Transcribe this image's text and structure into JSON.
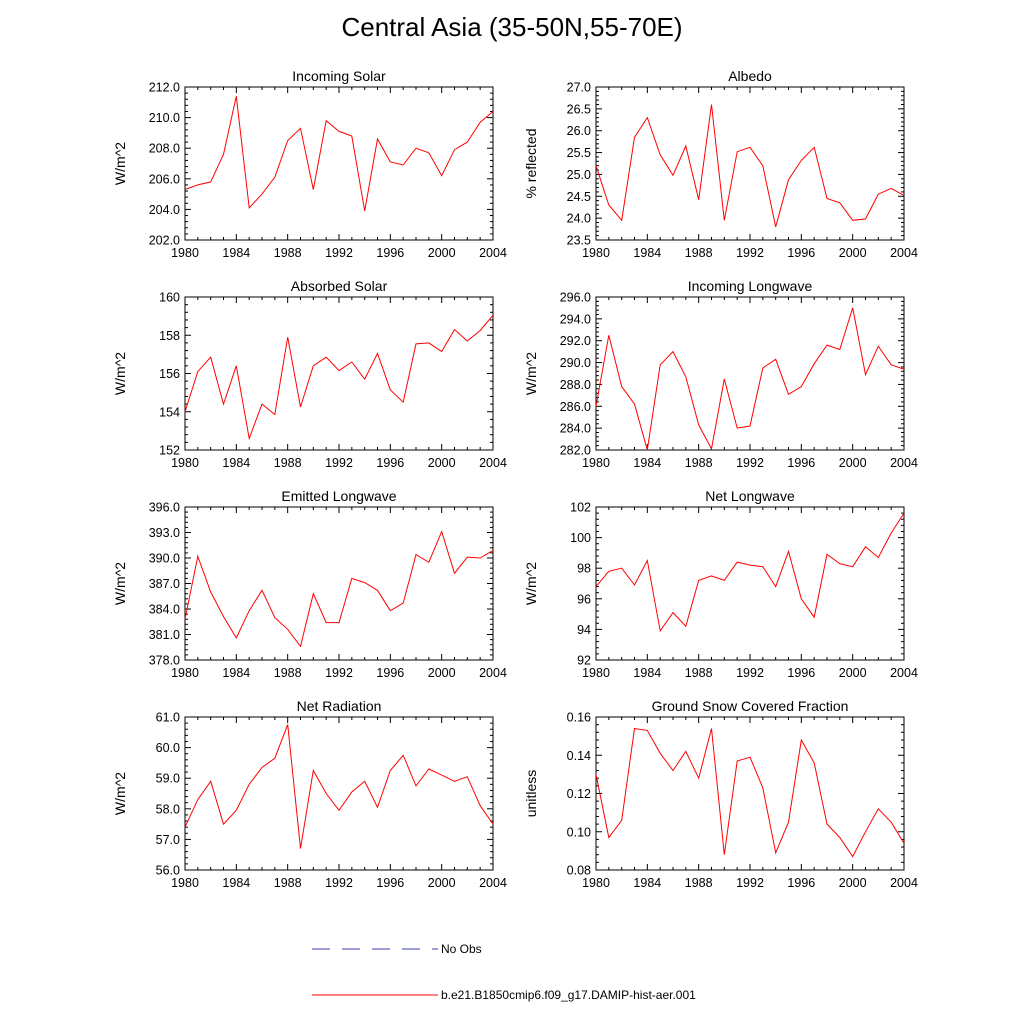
{
  "title": "Central Asia (35-50N,55-70E)",
  "colors": {
    "model_line": "#ff0000",
    "obs_line": "#3b3bb3",
    "axis": "#000000"
  },
  "legend": {
    "obs_label": "No Obs",
    "model_label": "b.e21.B1850cmip6.f09_g17.DAMIP-hist-aer.001"
  },
  "chart_data": [
    {
      "type": "line",
      "title": "Incoming Solar",
      "xlabel": "",
      "ylabel": "W/m^2",
      "xlim": [
        1980,
        2004
      ],
      "ylim": [
        202.0,
        212.0
      ],
      "xticks": [
        "1980",
        "1984",
        "1988",
        "1992",
        "1996",
        "2000",
        "2004"
      ],
      "yticks": [
        "202.0",
        "204.0",
        "206.0",
        "208.0",
        "210.0",
        "212.0"
      ],
      "series": [
        {
          "values": [
            205.3,
            205.6,
            205.8,
            207.6,
            211.4,
            204.1,
            205.0,
            206.1,
            208.5,
            209.3,
            205.3,
            209.8,
            209.1,
            208.8,
            203.9,
            208.6,
            207.1,
            206.9,
            208.0,
            207.7,
            206.2,
            207.9,
            208.4,
            209.7,
            210.4
          ]
        }
      ]
    },
    {
      "type": "line",
      "title": "Albedo",
      "xlabel": "",
      "ylabel": "% reflected",
      "xlim": [
        1980,
        2004
      ],
      "ylim": [
        23.5,
        27.0
      ],
      "xticks": [
        "1980",
        "1984",
        "1988",
        "1992",
        "1996",
        "2000",
        "2004"
      ],
      "yticks": [
        "23.5",
        "24.0",
        "24.5",
        "25.0",
        "25.5",
        "26.0",
        "26.5",
        "27.0"
      ],
      "series": [
        {
          "values": [
            25.2,
            24.3,
            23.95,
            25.85,
            26.3,
            25.45,
            24.98,
            25.65,
            24.42,
            26.6,
            23.95,
            25.52,
            25.62,
            25.2,
            23.8,
            24.88,
            25.32,
            25.62,
            24.45,
            24.35,
            23.95,
            23.98,
            24.55,
            24.68,
            24.52
          ]
        }
      ]
    },
    {
      "type": "line",
      "title": "Absorbed Solar",
      "xlabel": "",
      "ylabel": "W/m^2",
      "xlim": [
        1980,
        2004
      ],
      "ylim": [
        152,
        160
      ],
      "xticks": [
        "1980",
        "1984",
        "1988",
        "1992",
        "1996",
        "2000",
        "2004"
      ],
      "yticks": [
        "152",
        "154",
        "156",
        "158",
        "160"
      ],
      "series": [
        {
          "values": [
            154.0,
            156.1,
            156.85,
            154.4,
            156.4,
            152.6,
            154.4,
            153.85,
            157.9,
            154.25,
            156.4,
            156.85,
            156.15,
            156.6,
            155.7,
            157.05,
            155.15,
            154.5,
            157.55,
            157.6,
            157.15,
            158.3,
            157.7,
            158.25,
            159.05
          ]
        }
      ]
    },
    {
      "type": "line",
      "title": "Incoming Longwave",
      "xlabel": "",
      "ylabel": "W/m^2",
      "xlim": [
        1980,
        2004
      ],
      "ylim": [
        282.0,
        296.0
      ],
      "xticks": [
        "1980",
        "1984",
        "1988",
        "1992",
        "1996",
        "2000",
        "2004"
      ],
      "yticks": [
        "282.0",
        "284.0",
        "286.0",
        "288.0",
        "290.0",
        "292.0",
        "294.0",
        "296.0"
      ],
      "series": [
        {
          "values": [
            286.0,
            292.5,
            287.8,
            286.2,
            282.0,
            289.8,
            291.0,
            288.7,
            284.3,
            282.1,
            288.5,
            284.0,
            284.2,
            289.5,
            290.3,
            287.1,
            287.8,
            289.9,
            291.6,
            291.2,
            295.0,
            288.9,
            291.5,
            289.8,
            289.4
          ]
        }
      ]
    },
    {
      "type": "line",
      "title": "Emitted Longwave",
      "xlabel": "",
      "ylabel": "W/m^2",
      "xlim": [
        1980,
        2004
      ],
      "ylim": [
        378.0,
        396.0
      ],
      "xticks": [
        "1980",
        "1984",
        "1988",
        "1992",
        "1996",
        "2000",
        "2004"
      ],
      "yticks": [
        "378.0",
        "381.0",
        "384.0",
        "387.0",
        "390.0",
        "393.0",
        "396.0"
      ],
      "series": [
        {
          "values": [
            382.8,
            390.2,
            386.0,
            383.1,
            380.6,
            383.8,
            386.2,
            383.0,
            381.6,
            379.6,
            385.8,
            382.4,
            382.4,
            387.6,
            387.1,
            386.2,
            383.8,
            384.7,
            390.4,
            389.5,
            393.1,
            388.2,
            390.1,
            390.0,
            390.9
          ]
        }
      ]
    },
    {
      "type": "line",
      "title": "Net Longwave",
      "xlabel": "",
      "ylabel": "W/m^2",
      "xlim": [
        1980,
        2004
      ],
      "ylim": [
        92,
        102
      ],
      "xticks": [
        "1980",
        "1984",
        "1988",
        "1992",
        "1996",
        "2000",
        "2004"
      ],
      "yticks": [
        "92",
        "94",
        "96",
        "98",
        "100",
        "102"
      ],
      "series": [
        {
          "values": [
            96.8,
            97.8,
            98.0,
            96.9,
            98.5,
            93.9,
            95.1,
            94.2,
            97.2,
            97.5,
            97.2,
            98.4,
            98.2,
            98.1,
            96.8,
            99.1,
            96.0,
            94.8,
            98.9,
            98.3,
            98.1,
            99.4,
            98.7,
            100.3,
            101.6
          ]
        }
      ]
    },
    {
      "type": "line",
      "title": "Net Radiation",
      "xlabel": "",
      "ylabel": "W/m^2",
      "xlim": [
        1980,
        2004
      ],
      "ylim": [
        56.0,
        61.0
      ],
      "xticks": [
        "1980",
        "1984",
        "1988",
        "1992",
        "1996",
        "2000",
        "2004"
      ],
      "yticks": [
        "56.0",
        "57.0",
        "58.0",
        "59.0",
        "60.0",
        "61.0"
      ],
      "series": [
        {
          "values": [
            57.4,
            58.3,
            58.9,
            57.5,
            57.95,
            58.8,
            59.35,
            59.65,
            60.75,
            56.7,
            59.25,
            58.5,
            57.95,
            58.55,
            58.9,
            58.05,
            59.25,
            59.75,
            58.75,
            59.3,
            59.1,
            58.9,
            59.05,
            58.1,
            57.5
          ]
        }
      ]
    },
    {
      "type": "line",
      "title": "Ground Snow Covered Fraction",
      "xlabel": "",
      "ylabel": "unitless",
      "xlim": [
        1980,
        2004
      ],
      "ylim": [
        0.08,
        0.16
      ],
      "xticks": [
        "1980",
        "1984",
        "1988",
        "1992",
        "1996",
        "2000",
        "2004"
      ],
      "yticks": [
        "0.08",
        "0.10",
        "0.12",
        "0.14",
        "0.16"
      ],
      "series": [
        {
          "values": [
            0.13,
            0.097,
            0.106,
            0.154,
            0.153,
            0.141,
            0.132,
            0.142,
            0.128,
            0.154,
            0.088,
            0.137,
            0.139,
            0.123,
            0.089,
            0.105,
            0.148,
            0.136,
            0.104,
            0.097,
            0.087,
            0.1,
            0.112,
            0.105,
            0.094
          ]
        }
      ]
    }
  ]
}
